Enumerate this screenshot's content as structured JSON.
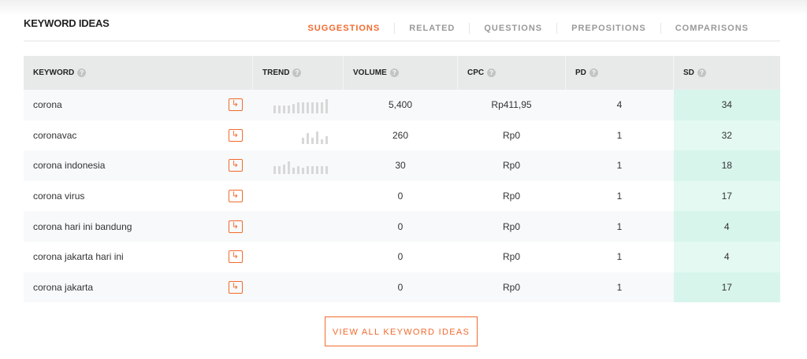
{
  "header": {
    "title": "KEYWORD IDEAS",
    "tabs": [
      "SUGGESTIONS",
      "RELATED",
      "QUESTIONS",
      "PREPOSITIONS",
      "COMPARISONS"
    ],
    "active_tab": "SUGGESTIONS"
  },
  "table": {
    "columns": [
      "KEYWORD",
      "TREND",
      "VOLUME",
      "CPC",
      "PD",
      "SD"
    ],
    "rows": [
      {
        "keyword": "corona",
        "trend": [
          10,
          10,
          10,
          10,
          12,
          14,
          14,
          14,
          14,
          14,
          14,
          18
        ],
        "volume": "5,400",
        "cpc": "Rp411,95",
        "pd": "4",
        "sd": "34"
      },
      {
        "keyword": "coronavac",
        "trend": [
          0,
          0,
          0,
          0,
          0,
          0,
          8,
          14,
          8,
          16,
          6,
          10
        ],
        "volume": "260",
        "cpc": "Rp0",
        "pd": "1",
        "sd": "32"
      },
      {
        "keyword": "corona indonesia",
        "trend": [
          10,
          10,
          12,
          16,
          8,
          10,
          8,
          10,
          10,
          10,
          10,
          10
        ],
        "volume": "30",
        "cpc": "Rp0",
        "pd": "1",
        "sd": "18"
      },
      {
        "keyword": "corona virus",
        "trend": [],
        "volume": "0",
        "cpc": "Rp0",
        "pd": "1",
        "sd": "17"
      },
      {
        "keyword": "corona hari ini bandung",
        "trend": [],
        "volume": "0",
        "cpc": "Rp0",
        "pd": "1",
        "sd": "4"
      },
      {
        "keyword": "corona jakarta hari ini",
        "trend": [],
        "volume": "0",
        "cpc": "Rp0",
        "pd": "1",
        "sd": "4"
      },
      {
        "keyword": "corona jakarta",
        "trend": [],
        "volume": "0",
        "cpc": "Rp0",
        "pd": "1",
        "sd": "17"
      }
    ]
  },
  "button": {
    "label": "VIEW ALL KEYWORD IDEAS"
  },
  "colors": {
    "accent": "#f26a2e",
    "sd_bg": "#d8f5ec"
  }
}
